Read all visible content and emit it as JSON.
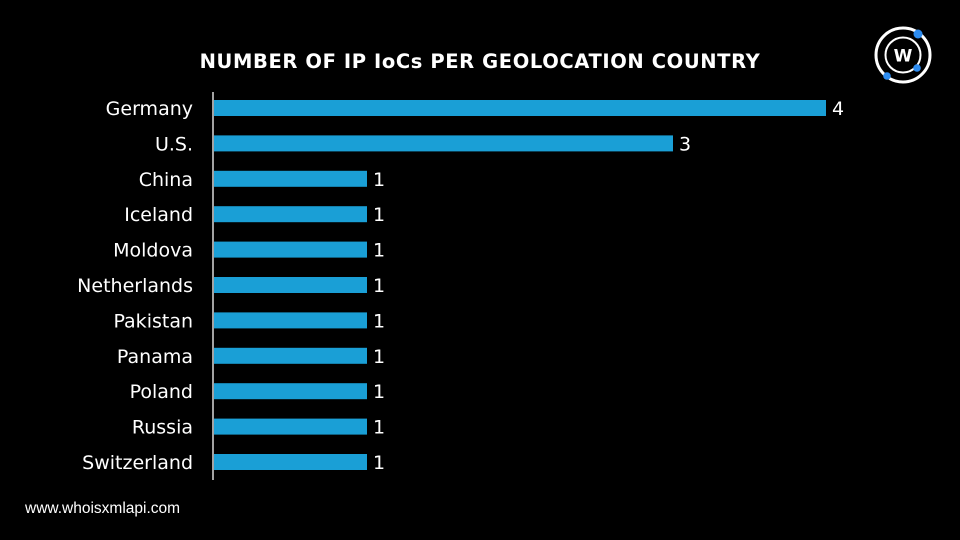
{
  "chart_data": {
    "type": "bar",
    "orientation": "horizontal",
    "title": "NUMBER OF IP IoCs PER GEOLOCATION COUNTRY",
    "categories": [
      "Germany",
      "U.S.",
      "China",
      "Iceland",
      "Moldova",
      "Netherlands",
      "Pakistan",
      "Panama",
      "Poland",
      "Russia",
      "Switzerland"
    ],
    "values": [
      4,
      3,
      1,
      1,
      1,
      1,
      1,
      1,
      1,
      1,
      1
    ],
    "xlim": [
      0,
      4
    ],
    "bar_color": "#1a9fd6",
    "grid": false,
    "legend": "none",
    "data_labels": true
  },
  "footer": {
    "website": "www.whoisxmlapi.com"
  },
  "logo": {
    "icon": "whoisxmlapi-logo-icon",
    "letter": "W",
    "accent_color": "#2d8cf0"
  }
}
